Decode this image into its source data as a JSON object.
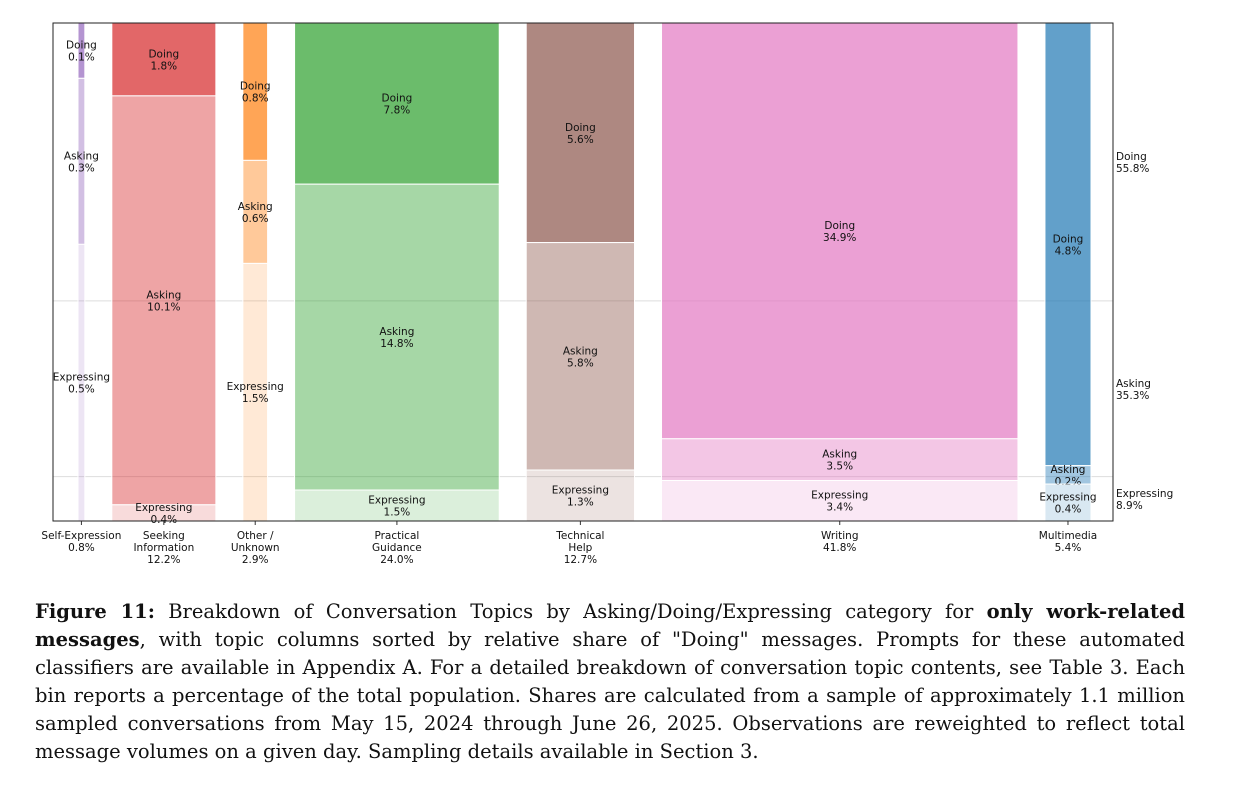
{
  "chart_data": {
    "type": "mosaic",
    "categories_order": [
      "Doing",
      "Asking",
      "Expressing"
    ],
    "columns": [
      {
        "label": "Self-Expression",
        "share": "0.8%",
        "total": 0.8,
        "color": "#9467bd",
        "segments": [
          {
            "name": "Doing",
            "value": 0.1,
            "label": "0.1%"
          },
          {
            "name": "Asking",
            "value": 0.3,
            "label": "0.3%"
          },
          {
            "name": "Expressing",
            "value": 0.5,
            "label": "0.5%"
          }
        ],
        "tick": [
          "Self-Expression",
          "0.8%"
        ]
      },
      {
        "label": "Seeking Information",
        "share": "12.2%",
        "total": 12.2,
        "color": "#d62728",
        "segments": [
          {
            "name": "Doing",
            "value": 1.8,
            "label": "1.8%"
          },
          {
            "name": "Asking",
            "value": 10.1,
            "label": "10.1%"
          },
          {
            "name": "Expressing",
            "value": 0.4,
            "label": "0.4%"
          }
        ],
        "tick": [
          "Seeking",
          "Information",
          "12.2%"
        ]
      },
      {
        "label": "Other / Unknown",
        "share": "2.9%",
        "total": 2.9,
        "color": "#ff7f0e",
        "segments": [
          {
            "name": "Doing",
            "value": 0.8,
            "label": "0.8%"
          },
          {
            "name": "Asking",
            "value": 0.6,
            "label": "0.6%"
          },
          {
            "name": "Expressing",
            "value": 1.5,
            "label": "1.5%"
          }
        ],
        "tick": [
          "Other /",
          "Unknown",
          "2.9%"
        ]
      },
      {
        "label": "Practical Guidance",
        "share": "24.0%",
        "total": 24.0,
        "color": "#2ca02c",
        "segments": [
          {
            "name": "Doing",
            "value": 7.8,
            "label": "7.8%"
          },
          {
            "name": "Asking",
            "value": 14.8,
            "label": "14.8%"
          },
          {
            "name": "Expressing",
            "value": 1.5,
            "label": "1.5%"
          }
        ],
        "tick": [
          "Practical",
          "Guidance",
          "24.0%"
        ]
      },
      {
        "label": "Technical Help",
        "share": "12.7%",
        "total": 12.7,
        "color": "#8c564b",
        "segments": [
          {
            "name": "Doing",
            "value": 5.6,
            "label": "5.6%"
          },
          {
            "name": "Asking",
            "value": 5.8,
            "label": "5.8%"
          },
          {
            "name": "Expressing",
            "value": 1.3,
            "label": "1.3%"
          }
        ],
        "tick": [
          "Technical",
          "Help",
          "12.7%"
        ]
      },
      {
        "label": "Writing",
        "share": "41.8%",
        "total": 41.8,
        "color": "#e377c2",
        "segments": [
          {
            "name": "Doing",
            "value": 34.9,
            "label": "34.9%"
          },
          {
            "name": "Asking",
            "value": 3.5,
            "label": "3.5%"
          },
          {
            "name": "Expressing",
            "value": 3.4,
            "label": "3.4%"
          }
        ],
        "tick": [
          "Writing",
          "41.8%"
        ]
      },
      {
        "label": "Multimedia",
        "share": "5.4%",
        "total": 5.4,
        "color": "#1f77b4",
        "segments": [
          {
            "name": "Doing",
            "value": 4.8,
            "label": "4.8%"
          },
          {
            "name": "Asking",
            "value": 0.2,
            "label": "0.2%"
          },
          {
            "name": "Expressing",
            "value": 0.4,
            "label": "0.4%"
          }
        ],
        "tick": [
          "Multimedia",
          "5.4%"
        ]
      }
    ],
    "overall": [
      {
        "name": "Doing",
        "value": 55.8,
        "label": "55.8%"
      },
      {
        "name": "Asking",
        "value": 35.3,
        "label": "35.3%"
      },
      {
        "name": "Expressing",
        "value": 8.9,
        "label": "8.9%"
      }
    ],
    "alpha": {
      "Doing": 0.7,
      "Asking": 0.42,
      "Expressing": 0.17
    },
    "reference_lines": true
  },
  "caption": {
    "label": "Figure 11:",
    "t1": " Breakdown of Conversation Topics by Asking/Doing/Expressing category for ",
    "bold": "only work-related messages",
    "t2": ", with topic columns sorted by relative share of \"Doing\" messages. Prompts for these automated classifiers are available in Appendix A. For a detailed breakdown of conversation topic contents, see Table 3. Each bin reports a percentage of the total population. Shares are calculated from a sample of approximately 1.1 million sampled conversations from May 15, 2024 through June 26, 2025. Observations are reweighted to reflect total message volumes on a given day. Sampling details available in Section 3."
  }
}
